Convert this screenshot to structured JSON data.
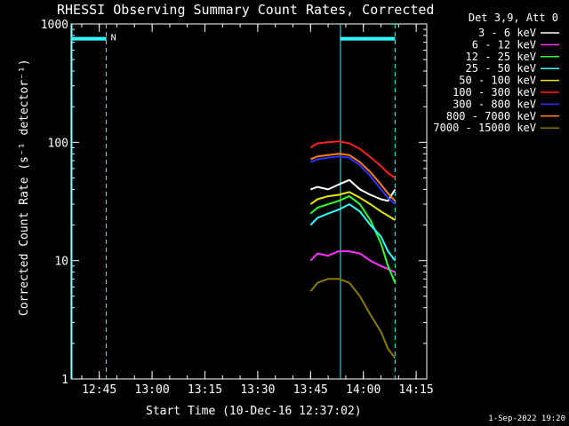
{
  "chart_data": {
    "type": "line",
    "title": "RHESSI Observing Summary Count Rates, Corrected",
    "xlabel": "Start Time (10-Dec-16 12:37:02)",
    "ylabel": "Corrected Count Rate (s⁻¹ detector⁻¹)",
    "yscale": "log",
    "ylim": [
      1,
      1000
    ],
    "xlim_minutes_from_1237": [
      0,
      101
    ],
    "x_ticks": [
      {
        "label": "12:45",
        "minute": 8
      },
      {
        "label": "13:00",
        "minute": 23
      },
      {
        "label": "13:15",
        "minute": 38
      },
      {
        "label": "13:30",
        "minute": 53
      },
      {
        "label": "13:45",
        "minute": 68
      },
      {
        "label": "14:00",
        "minute": 83
      },
      {
        "label": "14:15",
        "minute": 98
      }
    ],
    "y_ticks": [
      {
        "label": "1",
        "value": 1
      },
      {
        "label": "10",
        "value": 10
      },
      {
        "label": "100",
        "value": 100
      },
      {
        "label": "1000",
        "value": 1000
      }
    ],
    "legend_header": "Det 3,9, Att 0",
    "legend_position": "top-right-outside",
    "series": [
      {
        "name": "3 - 6 keV",
        "color": "#ffffff",
        "x": [
          68,
          70,
          73,
          76,
          79,
          82,
          85,
          88,
          90,
          92
        ],
        "y": [
          40,
          42,
          40,
          44,
          48,
          40,
          36,
          33,
          32,
          40
        ]
      },
      {
        "name": "6 - 12 keV",
        "color": "#ff30ff",
        "x": [
          68,
          70,
          73,
          76,
          79,
          82,
          85,
          88,
          90,
          92
        ],
        "y": [
          10,
          11.5,
          11,
          12,
          12,
          11.5,
          10,
          9,
          8.5,
          8
        ]
      },
      {
        "name": "12 - 25 keV",
        "color": "#30ff30",
        "x": [
          68,
          70,
          73,
          76,
          79,
          82,
          85,
          88,
          90,
          92
        ],
        "y": [
          25,
          28,
          30,
          32,
          35,
          30,
          22,
          14,
          9,
          6.5
        ]
      },
      {
        "name": "25 - 50 keV",
        "color": "#30ffff",
        "x": [
          68,
          70,
          73,
          76,
          79,
          82,
          85,
          88,
          90,
          92
        ],
        "y": [
          20,
          23,
          25,
          27,
          30,
          26,
          20,
          16,
          12,
          10
        ]
      },
      {
        "name": "50 - 100 keV",
        "color": "#e8e800",
        "x": [
          68,
          70,
          73,
          76,
          79,
          82,
          85,
          88,
          90,
          92
        ],
        "y": [
          30,
          33,
          35,
          36,
          38,
          34,
          30,
          26,
          24,
          22
        ]
      },
      {
        "name": "100 - 300 keV",
        "color": "#ff2020",
        "x": [
          68,
          70,
          73,
          76,
          79,
          82,
          85,
          88,
          90,
          92
        ],
        "y": [
          90,
          98,
          100,
          102,
          98,
          88,
          75,
          63,
          55,
          50
        ]
      },
      {
        "name": "300 - 800 keV",
        "color": "#3030ff",
        "x": [
          68,
          70,
          73,
          76,
          79,
          82,
          85,
          88,
          90,
          92
        ],
        "y": [
          68,
          72,
          74,
          76,
          74,
          64,
          52,
          40,
          34,
          30
        ]
      },
      {
        "name": "800 - 7000 keV",
        "color": "#ff8000",
        "x": [
          68,
          70,
          73,
          76,
          79,
          82,
          85,
          88,
          90,
          92
        ],
        "y": [
          72,
          76,
          78,
          80,
          78,
          68,
          56,
          44,
          37,
          32
        ]
      },
      {
        "name": "7000 - 15000 keV",
        "color": "#8a7a00",
        "x": [
          68,
          70,
          73,
          76,
          79,
          82,
          85,
          88,
          90,
          92
        ],
        "y": [
          5.5,
          6.5,
          7,
          7,
          6.5,
          5,
          3.5,
          2.5,
          1.8,
          1.5
        ]
      }
    ],
    "overlays": {
      "attenuator_intervals": [
        [
          0,
          10
        ],
        [
          76.5,
          92
        ]
      ],
      "night_marker_label": "N",
      "night_boundaries": [
        10,
        92
      ],
      "intervals_value": 750,
      "color": "#30ffff"
    }
  },
  "footer": {
    "timestamp": "1-Sep-2022 19:20"
  }
}
